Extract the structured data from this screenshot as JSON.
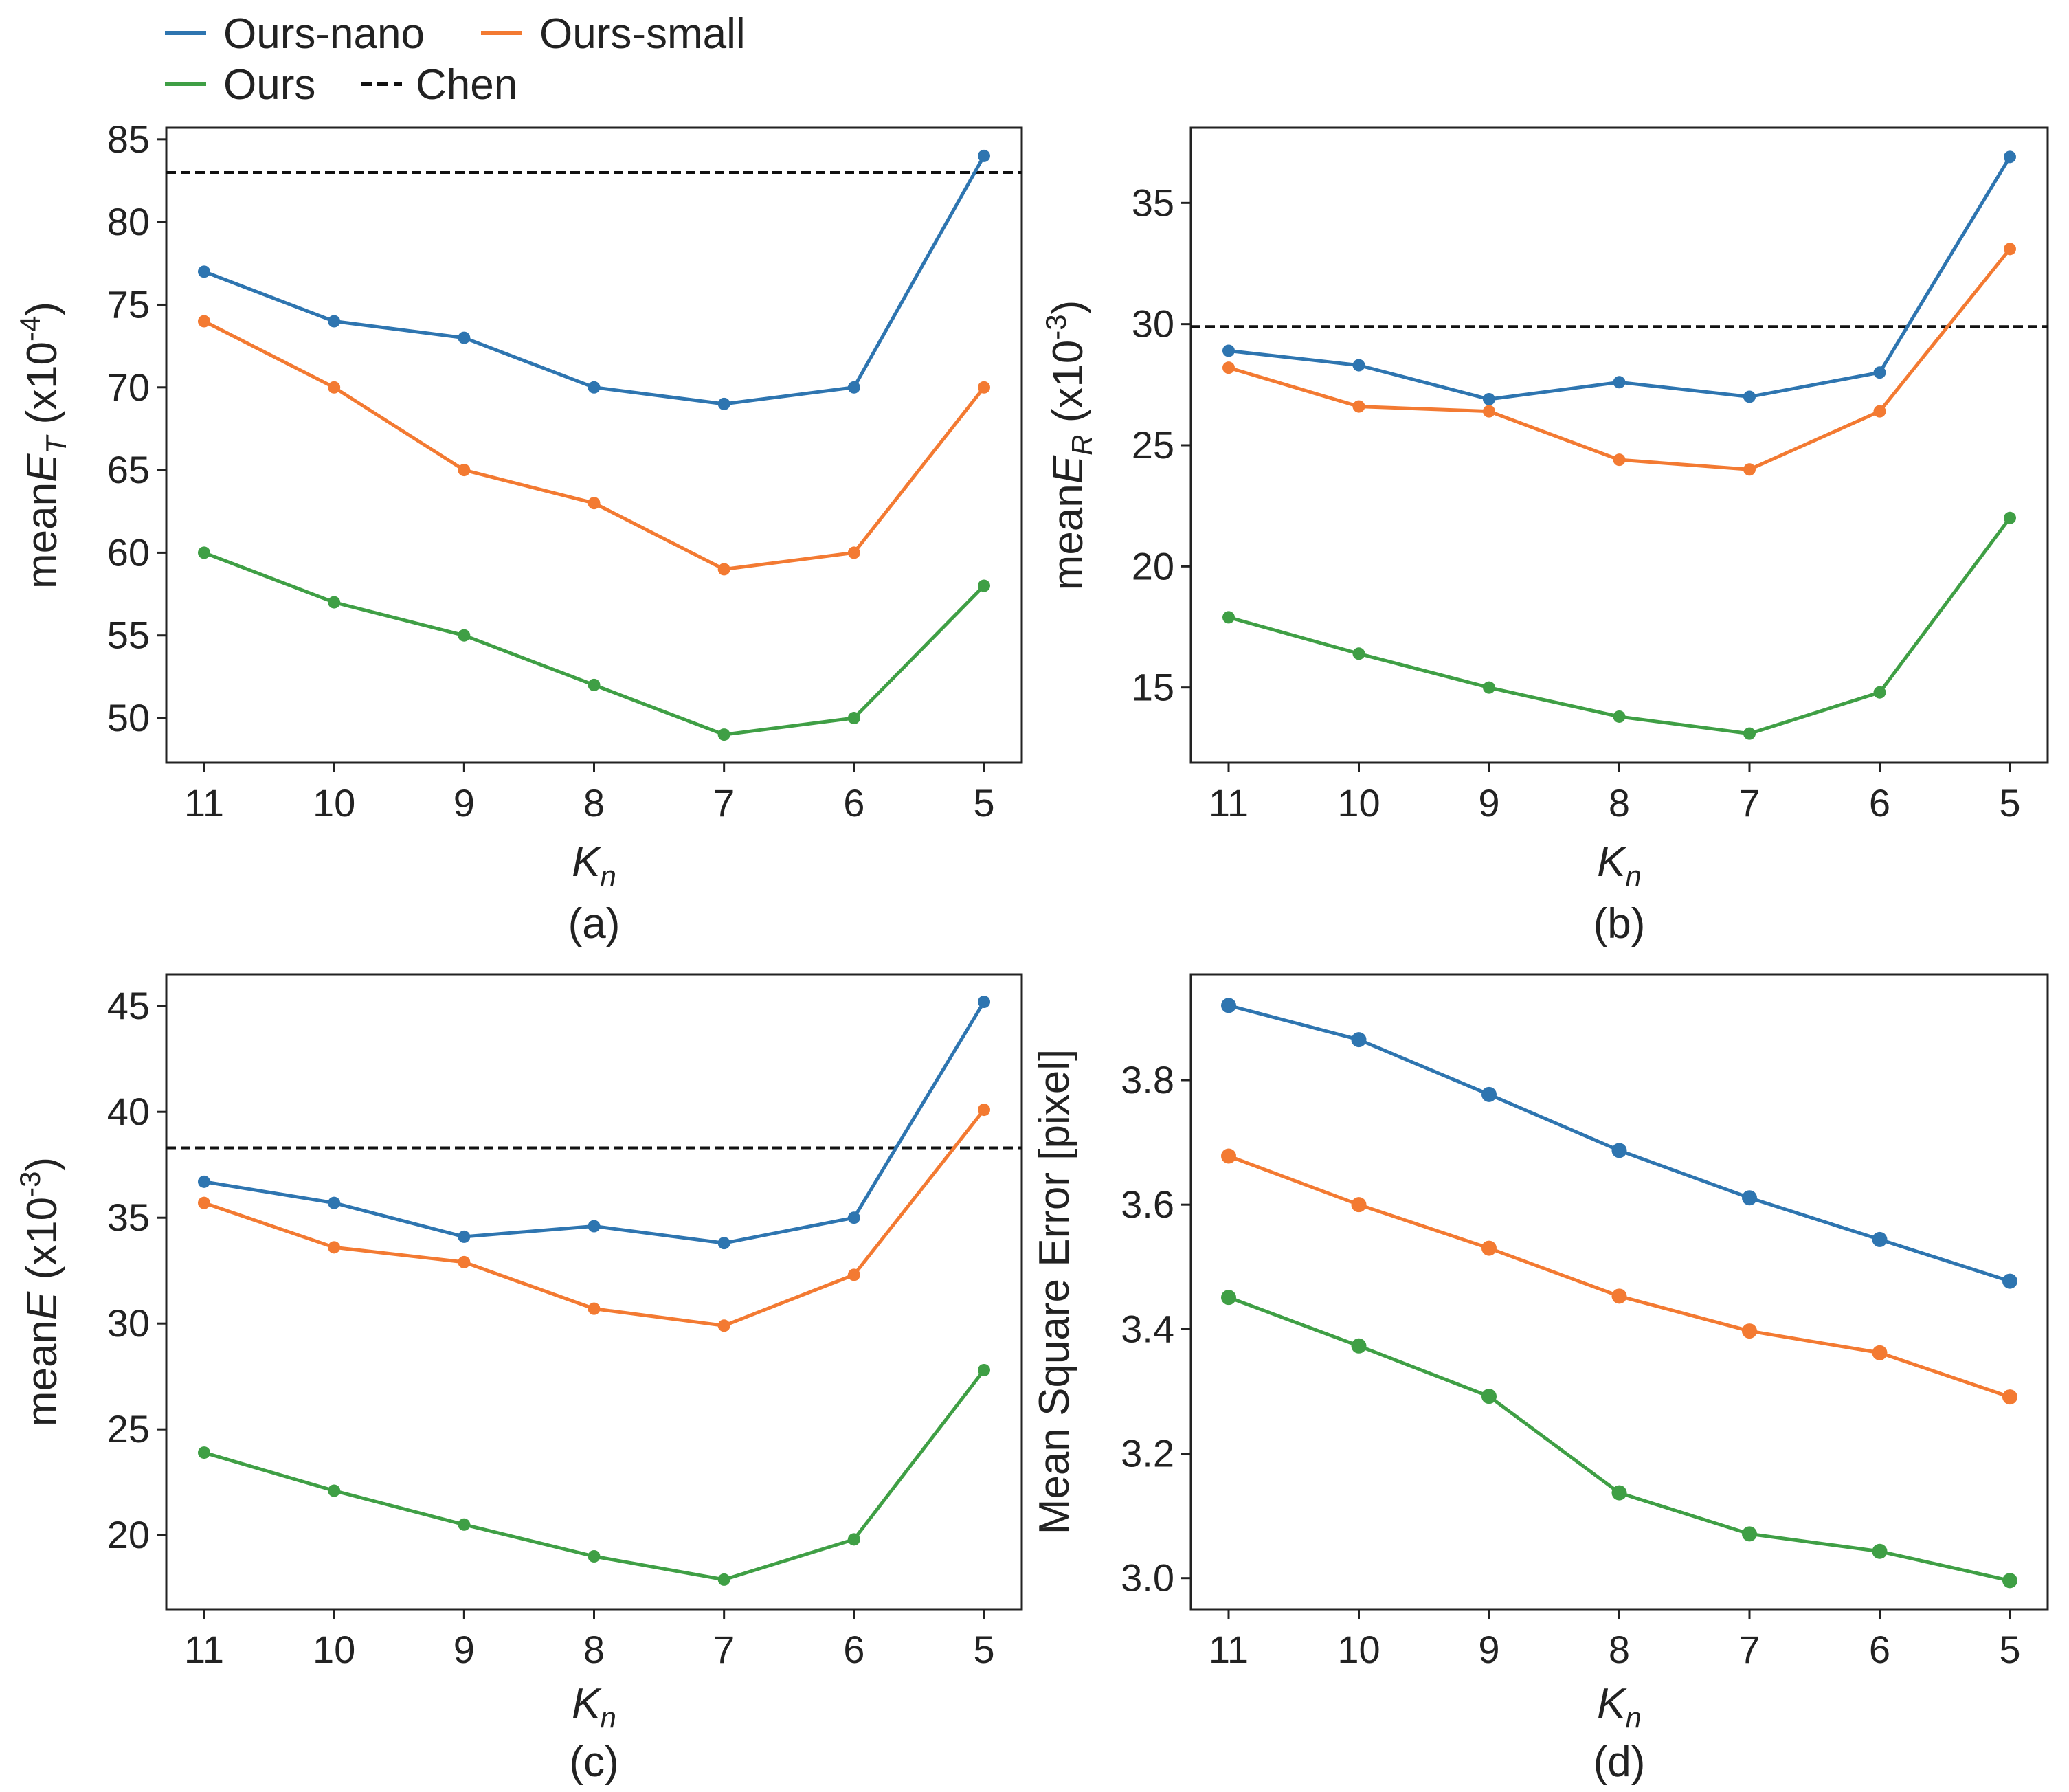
{
  "legend": {
    "items": [
      {
        "label": "Ours-nano",
        "color": "#2e75b0",
        "style": "solid"
      },
      {
        "label": "Ours-small",
        "color": "#f37a32",
        "style": "solid"
      },
      {
        "label": "Ours",
        "color": "#3f9f45",
        "style": "solid"
      },
      {
        "label": "Chen",
        "color": "#111111",
        "style": "dashed"
      }
    ]
  },
  "chart_data": [
    {
      "type": "line",
      "caption": "(a)",
      "ylabel": {
        "prefix": "mean",
        "var": "E",
        "sub": "T",
        "unit_pre": " (x10",
        "exp": "-4",
        "unit_post": ")"
      },
      "xlabel": {
        "var": "K",
        "sub": "n"
      },
      "x": [
        11,
        10,
        9,
        8,
        7,
        6,
        5
      ],
      "xticks": [
        "11",
        "10",
        "9",
        "8",
        "7",
        "6",
        "5"
      ],
      "ylim": [
        47.3,
        85.7
      ],
      "yticks": [
        50,
        55,
        60,
        65,
        70,
        75,
        80,
        85
      ],
      "yticklabels": [
        "50",
        "55",
        "60",
        "65",
        "70",
        "75",
        "80",
        "85"
      ],
      "baseline": {
        "name": "Chen",
        "value": 83
      },
      "series": [
        {
          "name": "Ours-nano",
          "values": [
            77,
            74,
            73,
            70,
            69,
            70,
            84
          ]
        },
        {
          "name": "Ours-small",
          "values": [
            74,
            70,
            65,
            63,
            59,
            60,
            70
          ]
        },
        {
          "name": "Ours",
          "values": [
            60,
            57,
            55,
            52,
            49,
            50,
            58
          ]
        }
      ]
    },
    {
      "type": "line",
      "caption": "(b)",
      "ylabel": {
        "prefix": "mean",
        "var": "E",
        "sub": "R",
        "unit_pre": " (x10",
        "exp": "-3",
        "unit_post": ")"
      },
      "xlabel": {
        "var": "K",
        "sub": "n"
      },
      "x": [
        11,
        10,
        9,
        8,
        7,
        6,
        5
      ],
      "xticks": [
        "11",
        "10",
        "9",
        "8",
        "7",
        "6",
        "5"
      ],
      "ylim": [
        11.9,
        38.1
      ],
      "yticks": [
        15,
        20,
        25,
        30,
        35
      ],
      "yticklabels": [
        "15",
        "20",
        "25",
        "30",
        "35"
      ],
      "baseline": {
        "name": "Chen",
        "value": 29.9
      },
      "series": [
        {
          "name": "Ours-nano",
          "values": [
            28.9,
            28.3,
            26.9,
            27.6,
            27.0,
            28.0,
            36.9
          ]
        },
        {
          "name": "Ours-small",
          "values": [
            28.2,
            26.6,
            26.4,
            24.4,
            24.0,
            26.4,
            33.1
          ]
        },
        {
          "name": "Ours",
          "values": [
            17.9,
            16.4,
            15.0,
            13.8,
            13.1,
            14.8,
            22.0
          ]
        }
      ]
    },
    {
      "type": "line",
      "caption": "(c)",
      "ylabel": {
        "prefix": "mean",
        "var": "E",
        "sub": "",
        "unit_pre": " (x10",
        "exp": "-3",
        "unit_post": ")"
      },
      "xlabel": {
        "var": "K",
        "sub": "n"
      },
      "x": [
        11,
        10,
        9,
        8,
        7,
        6,
        5
      ],
      "xticks": [
        "11",
        "10",
        "9",
        "8",
        "7",
        "6",
        "5"
      ],
      "ylim": [
        16.5,
        46.5
      ],
      "yticks": [
        20,
        25,
        30,
        35,
        40,
        45
      ],
      "yticklabels": [
        "20",
        "25",
        "30",
        "35",
        "40",
        "45"
      ],
      "baseline": {
        "name": "Chen",
        "value": 38.3
      },
      "series": [
        {
          "name": "Ours-nano",
          "values": [
            36.7,
            35.7,
            34.1,
            34.6,
            33.8,
            35.0,
            45.2
          ]
        },
        {
          "name": "Ours-small",
          "values": [
            35.7,
            33.6,
            32.9,
            30.7,
            29.9,
            32.3,
            40.1
          ]
        },
        {
          "name": "Ours",
          "values": [
            23.9,
            22.1,
            20.5,
            19.0,
            17.9,
            19.8,
            27.8
          ]
        }
      ]
    },
    {
      "type": "line",
      "caption": "(d)",
      "ylabel": {
        "text": "Mean Square Error [pixel]"
      },
      "xlabel": {
        "var": "K",
        "sub": "n"
      },
      "x": [
        11,
        10,
        9,
        8,
        7,
        6,
        5
      ],
      "xticks": [
        "11",
        "10",
        "9",
        "8",
        "7",
        "6",
        "5"
      ],
      "ylim": [
        2.95,
        3.97
      ],
      "yticks": [
        3.0,
        3.2,
        3.4,
        3.6,
        3.8
      ],
      "yticklabels": [
        "3.0",
        "3.2",
        "3.4",
        "3.6",
        "3.8"
      ],
      "baseline": null,
      "series": [
        {
          "name": "Ours-nano",
          "values": [
            3.92,
            3.865,
            3.777,
            3.687,
            3.611,
            3.544,
            3.477
          ]
        },
        {
          "name": "Ours-small",
          "values": [
            3.678,
            3.6,
            3.53,
            3.453,
            3.397,
            3.362,
            3.291
          ]
        },
        {
          "name": "Ours",
          "values": [
            3.451,
            3.373,
            3.292,
            3.137,
            3.071,
            3.043,
            2.996
          ]
        }
      ]
    }
  ]
}
